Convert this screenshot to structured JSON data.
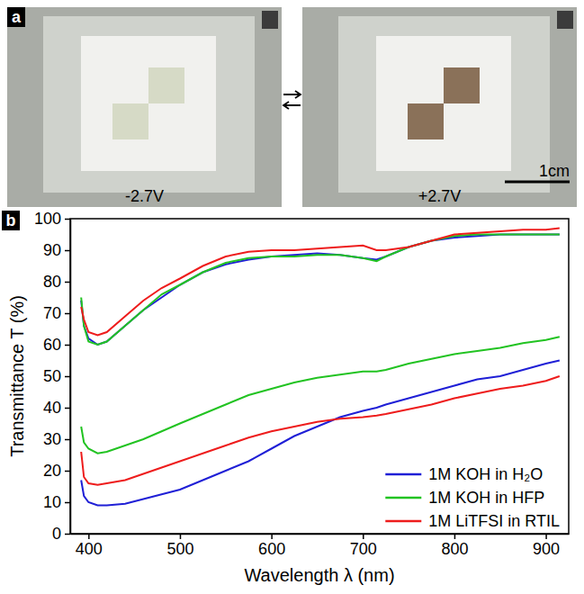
{
  "panel_labels": [
    "a",
    "b"
  ],
  "photos": {
    "labels": [
      "-2.7V",
      "+2.7V"
    ],
    "scale_bar": "1cm"
  },
  "chart_data": {
    "type": "line",
    "x_label": "Wavelength λ (nm)",
    "y_label": "Transmittance T (%)",
    "xlim": [
      380,
      925
    ],
    "ylim": [
      0,
      100
    ],
    "xticks": [
      400,
      500,
      600,
      700,
      800,
      900
    ],
    "yticks": [
      0,
      10,
      20,
      30,
      40,
      50,
      60,
      70,
      80,
      90,
      100
    ],
    "legend": "bottom-right",
    "x": [
      392,
      395,
      400,
      410,
      420,
      440,
      460,
      480,
      500,
      525,
      550,
      575,
      600,
      625,
      650,
      675,
      700,
      715,
      725,
      750,
      775,
      800,
      825,
      850,
      875,
      900,
      915
    ],
    "series": [
      {
        "name": "1M KOH in H₂O",
        "color": "#1f1fd6",
        "values": [
          17,
          12,
          10,
          9,
          9,
          9.5,
          11,
          12.5,
          14,
          17,
          20,
          23,
          27,
          31,
          34,
          37,
          39,
          40,
          41,
          43,
          45,
          47,
          49,
          50,
          52,
          54,
          55
        ],
        "values_bleached": [
          74,
          66,
          62,
          60,
          61,
          66,
          71,
          75,
          79,
          83,
          85.5,
          87,
          88,
          88.5,
          89,
          88.5,
          87.5,
          87,
          88,
          91,
          93,
          94,
          94.5,
          95,
          95,
          95,
          95
        ]
      },
      {
        "name": "1M KOH in HFP",
        "color": "#22c322",
        "values": [
          34,
          29,
          27,
          25.5,
          26,
          28,
          30,
          32.5,
          35,
          38,
          41,
          44,
          46,
          48,
          49.5,
          50.5,
          51.5,
          51.5,
          52,
          54,
          55.5,
          57,
          58,
          59,
          60.5,
          61.5,
          62.5
        ],
        "values_bleached": [
          75,
          66,
          61,
          60,
          61,
          66,
          71,
          76,
          79,
          83,
          86,
          87.5,
          88,
          88,
          88.5,
          88.5,
          87.5,
          86.5,
          88,
          91,
          93,
          94.5,
          95,
          95,
          95,
          95,
          95
        ]
      },
      {
        "name": "1M LiTFSI in RTIL",
        "color": "#ee1c1c",
        "values": [
          26,
          18,
          16,
          15.5,
          16,
          17,
          19,
          21,
          23,
          25.5,
          28,
          30.5,
          32.5,
          34,
          35.5,
          36.5,
          37,
          37.5,
          38,
          39.5,
          41,
          43,
          44.5,
          46,
          47,
          48.5,
          50
        ],
        "values_bleached": [
          72,
          68,
          64,
          63,
          64,
          69,
          74,
          78,
          81,
          85,
          88,
          89.5,
          90,
          90,
          90.5,
          91,
          91.5,
          90,
          90,
          91,
          93,
          95,
          95.5,
          96,
          96.5,
          96.5,
          97
        ]
      }
    ]
  }
}
